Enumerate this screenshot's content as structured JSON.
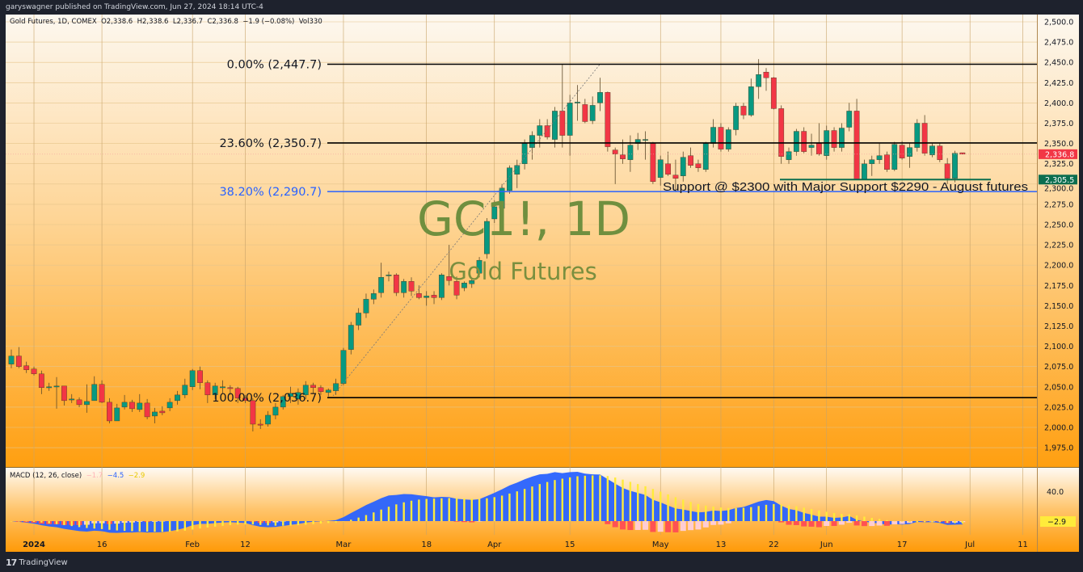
{
  "publish_line": "garyswagner published on TradingView.com, Jun 27, 2024 18:14 UTC-4",
  "legend": {
    "symbol": "Gold Futures, 1D, COMEX",
    "open": "O2,338.6",
    "high": "H2,338.6",
    "low": "L2,336.7",
    "close": "C2,336.8",
    "change": "−1.9 (−0.08%)",
    "volume": "Vol330"
  },
  "watermark": {
    "symbol": "GC1!, 1D",
    "name": "Gold Futures"
  },
  "fib_levels": [
    {
      "label": "0.00% (2,447.7)",
      "price": 2447.7,
      "color": "#000000"
    },
    {
      "label": "23.60% (2,350.7)",
      "price": 2350.7,
      "color": "#000000"
    },
    {
      "label": "38.20% (2,290.7)",
      "price": 2290.7,
      "color": "#2962ff"
    },
    {
      "label": "100.00% (2,036.7)",
      "price": 2036.7,
      "color": "#000000"
    }
  ],
  "annotation": {
    "text": "Support @ $2300 with Major Support $2290 - August futures",
    "support_price": 2305.5
  },
  "price_badges": [
    {
      "label": "2,336.8",
      "price": 2336.8,
      "color": "#f23645"
    },
    {
      "label": "2,305.5",
      "price": 2305.5,
      "color": "#0b6e4f"
    }
  ],
  "price_ticks": [
    "2,500.0",
    "2,475.0",
    "2,450.0",
    "2,425.0",
    "2,400.0",
    "2,375.0",
    "2,350.0",
    "2,325.0",
    "2,300.0",
    "2,275.0",
    "2,250.0",
    "2,225.0",
    "2,200.0",
    "2,175.0",
    "2,150.0",
    "2,125.0",
    "2,100.0",
    "2,075.0",
    "2,050.0",
    "2,025.0",
    "2,000.0",
    "1,975.0"
  ],
  "time_ticks": [
    {
      "label": "2024",
      "date": "2024-01-02"
    },
    {
      "label": "16",
      "date": "2024-01-16"
    },
    {
      "label": "Feb",
      "date": "2024-02-01"
    },
    {
      "label": "12",
      "date": "2024-02-12"
    },
    {
      "label": "Mar",
      "date": "2024-03-01"
    },
    {
      "label": "18",
      "date": "2024-03-18"
    },
    {
      "label": "Apr",
      "date": "2024-04-01"
    },
    {
      "label": "15",
      "date": "2024-04-15"
    },
    {
      "label": "May",
      "date": "2024-05-01"
    },
    {
      "label": "13",
      "date": "2024-05-13"
    },
    {
      "label": "22",
      "date": "2024-05-22"
    },
    {
      "label": "Jun",
      "date": "2024-06-03"
    },
    {
      "label": "17",
      "date": "2024-06-17"
    },
    {
      "label": "Jul",
      "date": "2024-07-01"
    },
    {
      "label": "11",
      "date": "2024-07-11"
    }
  ],
  "macd": {
    "title": "MACD (12, 26, close)",
    "histogram": "−1.7",
    "macd": "−4.5",
    "signal": "−2.9",
    "colors": {
      "histogram": "#ffb3b8",
      "macd": "#2962ff",
      "signal": "#ffeb3b"
    },
    "axis_label": "40.0",
    "badge": "−2.9"
  },
  "footer": {
    "brand": "TradingView"
  },
  "chart_data": {
    "type": "candlestick",
    "title": "Gold Futures, 1D, COMEX",
    "ylim": [
      1962,
      2512
    ],
    "colors": {
      "up": "#089981",
      "down": "#f23645"
    },
    "candles_fields": [
      "date",
      "open",
      "high",
      "low",
      "close"
    ],
    "candles": [
      [
        "2023-12-27",
        2078,
        2096,
        2073,
        2088
      ],
      [
        "2023-12-28",
        2088,
        2099,
        2073,
        2075
      ],
      [
        "2023-12-29",
        2076,
        2081,
        2067,
        2071
      ],
      [
        "2024-01-02",
        2072,
        2075,
        2064,
        2066
      ],
      [
        "2024-01-03",
        2066,
        2070,
        2041,
        2049
      ],
      [
        "2024-01-04",
        2049,
        2055,
        2045,
        2050
      ],
      [
        "2024-01-05",
        2051,
        2062,
        2023,
        2051
      ],
      [
        "2024-01-08",
        2051,
        2051,
        2027,
        2033
      ],
      [
        "2024-01-09",
        2034,
        2041,
        2030,
        2035
      ],
      [
        "2024-01-10",
        2034,
        2037,
        2025,
        2028
      ],
      [
        "2024-01-11",
        2028,
        2053,
        2018,
        2032
      ],
      [
        "2024-01-12",
        2033,
        2063,
        2033,
        2053
      ],
      [
        "2024-01-16",
        2053,
        2058,
        2030,
        2031
      ],
      [
        "2024-01-17",
        2031,
        2036,
        2005,
        2008
      ],
      [
        "2024-01-18",
        2008,
        2029,
        2008,
        2024
      ],
      [
        "2024-01-19",
        2025,
        2040,
        2022,
        2031
      ],
      [
        "2024-01-22",
        2031,
        2034,
        2019,
        2023
      ],
      [
        "2024-01-23",
        2022,
        2041,
        2019,
        2030
      ],
      [
        "2024-01-24",
        2030,
        2035,
        2010,
        2013
      ],
      [
        "2024-01-25",
        2014,
        2024,
        2005,
        2019
      ],
      [
        "2024-01-26",
        2020,
        2026,
        2015,
        2018
      ],
      [
        "2024-01-29",
        2024,
        2036,
        2020,
        2031
      ],
      [
        "2024-01-30",
        2033,
        2045,
        2028,
        2040
      ],
      [
        "2024-01-31",
        2040,
        2060,
        2036,
        2052
      ],
      [
        "2024-02-01",
        2050,
        2072,
        2046,
        2070
      ],
      [
        "2024-02-02",
        2070,
        2075,
        2047,
        2055
      ],
      [
        "2024-02-05",
        2055,
        2058,
        2030,
        2040
      ],
      [
        "2024-02-06",
        2040,
        2055,
        2035,
        2051
      ],
      [
        "2024-02-07",
        2050,
        2058,
        2042,
        2050
      ],
      [
        "2024-02-08",
        2049,
        2052,
        2040,
        2048
      ],
      [
        "2024-02-09",
        2048,
        2050,
        2030,
        2036
      ],
      [
        "2024-02-12",
        2036,
        2040,
        2030,
        2033
      ],
      [
        "2024-02-13",
        2033,
        2036,
        1995,
        2004
      ],
      [
        "2024-02-14",
        2004,
        2010,
        1998,
        2003
      ],
      [
        "2024-02-15",
        2004,
        2020,
        2001,
        2015
      ],
      [
        "2024-02-16",
        2015,
        2030,
        2010,
        2025
      ],
      [
        "2024-02-20",
        2025,
        2040,
        2022,
        2038
      ],
      [
        "2024-02-21",
        2038,
        2050,
        2030,
        2042
      ],
      [
        "2024-02-22",
        2035,
        2048,
        2028,
        2043
      ],
      [
        "2024-02-23",
        2040,
        2057,
        2035,
        2052
      ],
      [
        "2024-02-26",
        2052,
        2055,
        2042,
        2049
      ],
      [
        "2024-02-27",
        2049,
        2052,
        2040,
        2044
      ],
      [
        "2024-02-28",
        2043,
        2048,
        2038,
        2046
      ],
      [
        "2024-02-29",
        2045,
        2060,
        2040,
        2054
      ],
      [
        "2024-03-01",
        2054,
        2098,
        2052,
        2095
      ],
      [
        "2024-03-04",
        2096,
        2130,
        2090,
        2126
      ],
      [
        "2024-03-05",
        2126,
        2147,
        2120,
        2141
      ],
      [
        "2024-03-06",
        2141,
        2165,
        2135,
        2158
      ],
      [
        "2024-03-07",
        2158,
        2170,
        2152,
        2165
      ],
      [
        "2024-03-08",
        2166,
        2203,
        2160,
        2185
      ],
      [
        "2024-03-11",
        2188,
        2192,
        2180,
        2188
      ],
      [
        "2024-03-12",
        2188,
        2190,
        2162,
        2166
      ],
      [
        "2024-03-13",
        2166,
        2183,
        2160,
        2180
      ],
      [
        "2024-03-14",
        2180,
        2185,
        2162,
        2168
      ],
      [
        "2024-03-15",
        2165,
        2175,
        2158,
        2160
      ],
      [
        "2024-03-18",
        2160,
        2168,
        2150,
        2162
      ],
      [
        "2024-03-19",
        2163,
        2168,
        2152,
        2160
      ],
      [
        "2024-03-20",
        2160,
        2190,
        2157,
        2188
      ],
      [
        "2024-03-21",
        2186,
        2225,
        2175,
        2181
      ],
      [
        "2024-03-22",
        2180,
        2186,
        2158,
        2163
      ],
      [
        "2024-03-25",
        2172,
        2180,
        2168,
        2178
      ],
      [
        "2024-03-26",
        2177,
        2184,
        2172,
        2181
      ],
      [
        "2024-03-27",
        2190,
        2210,
        2185,
        2206
      ],
      [
        "2024-03-28",
        2214,
        2258,
        2208,
        2254
      ],
      [
        "2024-04-01",
        2257,
        2280,
        2252,
        2272
      ],
      [
        "2024-04-02",
        2270,
        2300,
        2262,
        2295
      ],
      [
        "2024-04-03",
        2292,
        2323,
        2288,
        2320
      ],
      [
        "2024-04-04",
        2312,
        2330,
        2295,
        2323
      ],
      [
        "2024-04-05",
        2325,
        2355,
        2318,
        2350
      ],
      [
        "2024-04-08",
        2345,
        2365,
        2330,
        2360
      ],
      [
        "2024-04-09",
        2360,
        2380,
        2345,
        2372
      ],
      [
        "2024-04-10",
        2372,
        2380,
        2355,
        2358
      ],
      [
        "2024-04-11",
        2355,
        2395,
        2345,
        2390
      ],
      [
        "2024-04-12",
        2390,
        2448,
        2345,
        2360
      ],
      [
        "2024-04-15",
        2360,
        2410,
        2335,
        2400
      ],
      [
        "2024-04-16",
        2401,
        2422,
        2378,
        2401
      ],
      [
        "2024-04-17",
        2398,
        2405,
        2375,
        2377
      ],
      [
        "2024-04-18",
        2378,
        2408,
        2374,
        2397
      ],
      [
        "2024-04-19",
        2400,
        2431,
        2390,
        2413
      ],
      [
        "2024-04-22",
        2413,
        2414,
        2340,
        2346
      ],
      [
        "2024-04-23",
        2342,
        2345,
        2300,
        2337
      ],
      [
        "2024-04-24",
        2336,
        2355,
        2325,
        2331
      ],
      [
        "2024-04-25",
        2330,
        2360,
        2315,
        2348
      ],
      [
        "2024-04-26",
        2350,
        2363,
        2342,
        2355
      ],
      [
        "2024-04-29",
        2355,
        2365,
        2330,
        2355
      ],
      [
        "2024-04-30",
        2350,
        2352,
        2300,
        2303
      ],
      [
        "2024-05-01",
        2308,
        2335,
        2298,
        2330
      ],
      [
        "2024-05-02",
        2325,
        2340,
        2310,
        2312
      ],
      [
        "2024-05-03",
        2311,
        2330,
        2290,
        2307
      ],
      [
        "2024-05-06",
        2310,
        2340,
        2303,
        2333
      ],
      [
        "2024-05-07",
        2335,
        2345,
        2320,
        2323
      ],
      [
        "2024-05-08",
        2325,
        2330,
        2315,
        2320
      ],
      [
        "2024-05-09",
        2318,
        2352,
        2315,
        2350
      ],
      [
        "2024-05-10",
        2350,
        2380,
        2345,
        2370
      ],
      [
        "2024-05-13",
        2370,
        2375,
        2340,
        2343
      ],
      [
        "2024-05-14",
        2343,
        2370,
        2340,
        2367
      ],
      [
        "2024-05-15",
        2367,
        2400,
        2360,
        2396
      ],
      [
        "2024-05-16",
        2396,
        2400,
        2380,
        2385
      ],
      [
        "2024-05-17",
        2385,
        2430,
        2383,
        2420
      ],
      [
        "2024-05-20",
        2420,
        2454,
        2405,
        2435
      ],
      [
        "2024-05-21",
        2438,
        2443,
        2415,
        2431
      ],
      [
        "2024-05-22",
        2431,
        2432,
        2392,
        2393
      ],
      [
        "2024-05-23",
        2393,
        2397,
        2325,
        2334
      ],
      [
        "2024-05-24",
        2330,
        2345,
        2325,
        2340
      ],
      [
        "2024-05-28",
        2340,
        2368,
        2335,
        2365
      ],
      [
        "2024-05-29",
        2365,
        2370,
        2338,
        2340
      ],
      [
        "2024-05-30",
        2345,
        2362,
        2335,
        2348
      ],
      [
        "2024-05-31",
        2350,
        2375,
        2335,
        2337
      ],
      [
        "2024-06-03",
        2335,
        2372,
        2330,
        2366
      ],
      [
        "2024-06-04",
        2366,
        2370,
        2340,
        2345
      ],
      [
        "2024-06-05",
        2345,
        2375,
        2340,
        2369
      ],
      [
        "2024-06-06",
        2370,
        2400,
        2365,
        2390
      ],
      [
        "2024-06-07",
        2390,
        2405,
        2305,
        2306
      ],
      [
        "2024-06-10",
        2306,
        2330,
        2305,
        2325
      ],
      [
        "2024-06-11",
        2325,
        2335,
        2310,
        2330
      ],
      [
        "2024-06-12",
        2330,
        2350,
        2325,
        2335
      ],
      [
        "2024-06-13",
        2336,
        2340,
        2315,
        2318
      ],
      [
        "2024-06-14",
        2318,
        2352,
        2316,
        2349
      ],
      [
        "2024-06-17",
        2348,
        2353,
        2330,
        2332
      ],
      [
        "2024-06-18",
        2334,
        2350,
        2320,
        2345
      ],
      [
        "2024-06-20",
        2345,
        2380,
        2340,
        2375
      ],
      [
        "2024-06-21",
        2375,
        2385,
        2335,
        2338
      ],
      [
        "2024-06-24",
        2336,
        2350,
        2333,
        2347
      ],
      [
        "2024-06-25",
        2347,
        2350,
        2327,
        2330
      ],
      [
        "2024-06-26",
        2325,
        2332,
        2300,
        2307
      ],
      [
        "2024-06-27",
        2307,
        2341,
        2302,
        2338
      ],
      [
        "2024-06-28",
        2338.6,
        2338.6,
        2336.7,
        2336.8
      ]
    ],
    "grid": true,
    "scale": "linear"
  }
}
